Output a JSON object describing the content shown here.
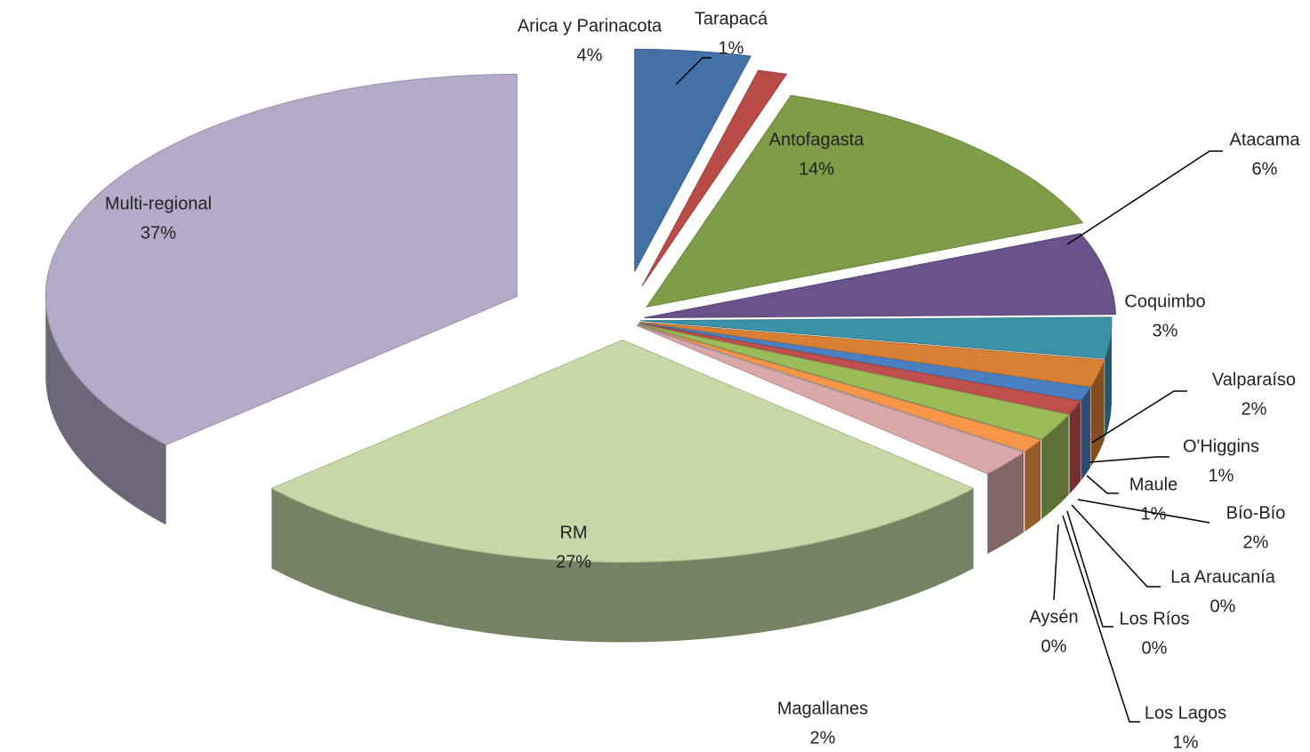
{
  "chart_data": {
    "type": "pie",
    "categories": [
      "Arica y Parinacota",
      "Tarapacá",
      "Antofagasta",
      "Atacama",
      "Coquimbo",
      "Valparaíso",
      "O'Higgins",
      "Maule",
      "Bío-Bío",
      "La Araucanía",
      "Los Ríos",
      "Los Lagos",
      "Aysén",
      "Magallanes",
      "RM",
      "Multi-regional"
    ],
    "values": [
      4,
      1,
      14,
      6,
      3,
      2,
      1,
      1,
      2,
      0,
      0,
      1,
      0,
      2,
      27,
      37
    ],
    "value_labels": [
      "4%",
      "1%",
      "14%",
      "6%",
      "3%",
      "2%",
      "1%",
      "1%",
      "2%",
      "0%",
      "0%",
      "1%",
      "0%",
      "2%",
      "27%",
      "37%"
    ],
    "colors": [
      "#4370a5",
      "#b94b48",
      "#7f9c48",
      "#6a528b",
      "#3b91a8",
      "#d98035",
      "#4a7fc1",
      "#c0504d",
      "#9bbb59",
      "#8064a2",
      "#4bacc6",
      "#f79646",
      "#95b3d7",
      "#d9a8a8",
      "#c5d8a6",
      "#b5abc9"
    ]
  }
}
